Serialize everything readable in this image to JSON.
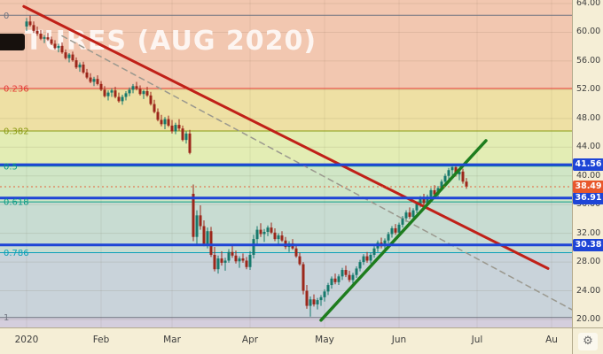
{
  "watermark": {
    "text": "TURES (AUG 2020)"
  },
  "controls": {
    "settings_icon": "⚙"
  },
  "chart_data": {
    "type": "candlestick",
    "title": "TURES (AUG 2020)",
    "colors": {
      "up": "#17796c",
      "down": "#9c271b",
      "background": "#f7f0d8"
    },
    "y_axis": {
      "min": 20,
      "max": 64,
      "ticks": [
        {
          "value": 64,
          "label": "64.00"
        },
        {
          "value": 60,
          "label": "60.00"
        },
        {
          "value": 56,
          "label": "56.00"
        },
        {
          "value": 52,
          "label": "52.00"
        },
        {
          "value": 48,
          "label": "48.00"
        },
        {
          "value": 44,
          "label": "44.00"
        },
        {
          "value": 40,
          "label": "40.00"
        },
        {
          "value": 36,
          "label": "36.00"
        },
        {
          "value": 32,
          "label": "32.00"
        },
        {
          "value": 28,
          "label": "28.00"
        },
        {
          "value": 24,
          "label": "24.00"
        },
        {
          "value": 20,
          "label": "20.00"
        }
      ]
    },
    "x_axis": {
      "labels": [
        {
          "label": "2020",
          "day": 0
        },
        {
          "label": "Feb",
          "day": 21
        },
        {
          "label": "Mar",
          "day": 41
        },
        {
          "label": "Apr",
          "day": 63
        },
        {
          "label": "May",
          "day": 84
        },
        {
          "label": "Jun",
          "day": 105
        },
        {
          "label": "Jul",
          "day": 127
        },
        {
          "label": "Au",
          "day": 148
        }
      ]
    },
    "fib_bands": [
      {
        "from": 66.0,
        "to": 52.17,
        "color": "#f2c7b0"
      },
      {
        "from": 52.17,
        "to": 46.25,
        "color": "#eee0a4"
      },
      {
        "from": 46.25,
        "to": 41.35,
        "color": "#e3edb4"
      },
      {
        "from": 41.35,
        "to": 36.38,
        "color": "#d0e6c6"
      },
      {
        "from": 36.38,
        "to": 29.31,
        "color": "#c8dcd2"
      },
      {
        "from": 29.31,
        "to": 20.28,
        "color": "#c9d3da"
      },
      {
        "from": 20.28,
        "to": 16.0,
        "color": "#d4cedd"
      }
    ],
    "fib_levels": [
      {
        "label": "0",
        "ratio": 0,
        "price": 62.36,
        "color": "#6f7480"
      },
      {
        "label": "0.236",
        "ratio": 0.236,
        "price": 52.17,
        "color": "#e53935"
      },
      {
        "label": "0.382",
        "ratio": 0.382,
        "price": 46.25,
        "color": "#8a9a12"
      },
      {
        "label": "0.5",
        "ratio": 0.5,
        "price": 41.35,
        "color": "#0a9a84"
      },
      {
        "label": "0.618",
        "ratio": 0.618,
        "price": 36.38,
        "color": "#0a9a84"
      },
      {
        "label": "0.786",
        "ratio": 0.786,
        "price": 29.31,
        "color": "#0aa0b8"
      },
      {
        "label": "1",
        "ratio": 1,
        "price": 20.28,
        "color": "#6f7480"
      }
    ],
    "price_lines": [
      {
        "label": "41.56",
        "price": 41.56,
        "color": "#1e45d6"
      },
      {
        "label": "36.91",
        "price": 36.91,
        "color": "#1e45d6"
      },
      {
        "label": "30.38",
        "price": 30.38,
        "color": "#1e45d6"
      }
    ],
    "current_price": {
      "label": "38.49",
      "price": 38.49,
      "color": "#e8572c"
    },
    "trend_lines": [
      {
        "name": "gray-dashed-channel",
        "color": "#9a988e",
        "width": 1.5,
        "dashed": true,
        "from": {
          "day": 10,
          "price": 59.5
        },
        "to": {
          "day": 154,
          "price": 21.3
        }
      },
      {
        "name": "red-downtrend",
        "color": "#c02018",
        "width": 3,
        "dashed": false,
        "from": {
          "day": -0.8,
          "price": 63.6
        },
        "to": {
          "day": 147,
          "price": 27.1
        }
      },
      {
        "name": "green-uptrend",
        "color": "#1e7d1e",
        "width": 3.5,
        "dashed": false,
        "from": {
          "day": 83,
          "price": 19.9
        },
        "to": {
          "day": 129.5,
          "price": 44.9
        }
      }
    ],
    "candles": [
      [
        60.8,
        62.0,
        60.2,
        61.5
      ],
      [
        61.5,
        62.3,
        60.8,
        61.0
      ],
      [
        61.0,
        61.5,
        59.9,
        60.2
      ],
      [
        60.2,
        60.8,
        59.5,
        59.8
      ],
      [
        59.8,
        60.3,
        58.9,
        59.1
      ],
      [
        59.1,
        59.6,
        58.5,
        59.3
      ],
      [
        59.3,
        59.9,
        58.8,
        59.0
      ],
      [
        59.0,
        59.4,
        58.2,
        58.4
      ],
      [
        58.4,
        58.9,
        57.6,
        57.8
      ],
      [
        57.8,
        58.4,
        57.2,
        58.1
      ],
      [
        58.1,
        58.6,
        57.0,
        57.2
      ],
      [
        57.2,
        57.6,
        56.2,
        56.4
      ],
      [
        56.4,
        57.1,
        55.8,
        56.9
      ],
      [
        56.9,
        57.3,
        55.9,
        56.1
      ],
      [
        56.1,
        56.5,
        54.9,
        55.1
      ],
      [
        55.1,
        55.8,
        54.5,
        55.5
      ],
      [
        55.5,
        55.9,
        54.2,
        54.4
      ],
      [
        54.4,
        54.9,
        53.5,
        53.7
      ],
      [
        53.7,
        54.3,
        52.9,
        53.1
      ],
      [
        53.1,
        53.8,
        52.5,
        53.5
      ],
      [
        53.5,
        54.0,
        52.6,
        52.8
      ],
      [
        52.8,
        53.2,
        51.8,
        52.0
      ],
      [
        52.0,
        52.5,
        50.9,
        51.1
      ],
      [
        51.1,
        51.9,
        50.5,
        51.6
      ],
      [
        51.6,
        52.2,
        51.0,
        51.9
      ],
      [
        51.9,
        52.4,
        50.8,
        51.0
      ],
      [
        51.0,
        51.6,
        50.2,
        50.4
      ],
      [
        50.4,
        51.3,
        49.9,
        51.0
      ],
      [
        51.0,
        51.8,
        50.5,
        51.5
      ],
      [
        51.5,
        52.3,
        51.1,
        52.0
      ],
      [
        52.0,
        52.8,
        51.5,
        52.5
      ],
      [
        52.5,
        53.1,
        51.9,
        52.1
      ],
      [
        52.1,
        52.6,
        51.2,
        51.4
      ],
      [
        51.4,
        52.0,
        50.7,
        51.8
      ],
      [
        51.8,
        52.4,
        51.0,
        51.2
      ],
      [
        51.2,
        51.7,
        49.8,
        50.0
      ],
      [
        50.0,
        50.6,
        48.7,
        48.9
      ],
      [
        48.9,
        49.4,
        47.6,
        47.8
      ],
      [
        47.8,
        48.5,
        46.9,
        47.2
      ],
      [
        47.2,
        48.2,
        46.5,
        47.9
      ],
      [
        47.9,
        48.4,
        46.8,
        47.0
      ],
      [
        47.0,
        47.8,
        45.9,
        46.2
      ],
      [
        46.2,
        47.4,
        45.8,
        47.1
      ],
      [
        47.1,
        47.9,
        46.3,
        46.6
      ],
      [
        46.6,
        47.0,
        44.8,
        45.0
      ],
      [
        45.0,
        46.2,
        44.5,
        45.9
      ],
      [
        45.9,
        46.4,
        43.0,
        43.2
      ],
      [
        37.5,
        38.8,
        30.9,
        31.5
      ],
      [
        31.5,
        35.2,
        30.5,
        34.5
      ],
      [
        34.5,
        35.9,
        32.5,
        33.0
      ],
      [
        33.0,
        33.8,
        30.2,
        30.5
      ],
      [
        30.5,
        32.8,
        29.9,
        32.3
      ],
      [
        32.3,
        32.9,
        28.7,
        29.0
      ],
      [
        29.0,
        30.1,
        26.7,
        27.0
      ],
      [
        27.0,
        28.9,
        26.4,
        28.5
      ],
      [
        28.5,
        29.5,
        27.5,
        27.9
      ],
      [
        27.9,
        28.6,
        26.8,
        28.2
      ],
      [
        28.2,
        29.8,
        27.9,
        29.4
      ],
      [
        29.4,
        30.5,
        28.6,
        28.9
      ],
      [
        28.9,
        29.6,
        27.8,
        28.1
      ],
      [
        28.1,
        28.8,
        27.2,
        28.5
      ],
      [
        28.5,
        29.2,
        27.9,
        28.2
      ],
      [
        28.2,
        28.7,
        27.0,
        27.3
      ],
      [
        27.3,
        29.5,
        26.9,
        29.0
      ],
      [
        29.0,
        31.8,
        28.5,
        31.2
      ],
      [
        31.2,
        33.0,
        30.5,
        32.5
      ],
      [
        32.5,
        33.4,
        31.5,
        31.9
      ],
      [
        31.9,
        32.6,
        30.8,
        32.2
      ],
      [
        32.2,
        33.1,
        31.6,
        32.8
      ],
      [
        32.8,
        33.5,
        31.9,
        32.1
      ],
      [
        32.1,
        32.7,
        30.9,
        31.2
      ],
      [
        31.2,
        32.0,
        30.5,
        31.7
      ],
      [
        31.7,
        32.3,
        30.8,
        31.0
      ],
      [
        31.0,
        31.5,
        29.8,
        30.1
      ],
      [
        30.1,
        30.9,
        29.4,
        30.6
      ],
      [
        30.6,
        31.2,
        29.7,
        29.9
      ],
      [
        29.9,
        30.4,
        28.6,
        28.8
      ],
      [
        28.8,
        29.3,
        27.5,
        27.7
      ],
      [
        27.7,
        28.0,
        23.5,
        24.0
      ],
      [
        24.0,
        24.8,
        21.5,
        21.9
      ],
      [
        21.9,
        23.2,
        20.4,
        22.8
      ],
      [
        22.8,
        23.5,
        21.8,
        22.1
      ],
      [
        22.1,
        23.0,
        21.4,
        22.7
      ],
      [
        22.7,
        23.4,
        21.9,
        23.1
      ],
      [
        23.1,
        24.2,
        22.5,
        23.9
      ],
      [
        23.9,
        25.1,
        23.4,
        24.8
      ],
      [
        24.8,
        26.0,
        24.3,
        25.7
      ],
      [
        25.7,
        26.4,
        24.9,
        25.2
      ],
      [
        25.2,
        26.3,
        24.8,
        26.0
      ],
      [
        26.0,
        27.2,
        25.5,
        26.9
      ],
      [
        26.9,
        27.5,
        25.9,
        26.2
      ],
      [
        26.2,
        26.8,
        25.2,
        25.5
      ],
      [
        25.5,
        26.5,
        25.0,
        26.2
      ],
      [
        26.2,
        27.4,
        25.8,
        27.1
      ],
      [
        27.1,
        28.3,
        26.7,
        28.0
      ],
      [
        28.0,
        29.1,
        27.6,
        28.8
      ],
      [
        28.8,
        29.4,
        27.9,
        28.2
      ],
      [
        28.2,
        29.3,
        27.8,
        29.0
      ],
      [
        29.0,
        30.2,
        28.6,
        29.9
      ],
      [
        29.9,
        31.0,
        29.4,
        30.7
      ],
      [
        30.7,
        31.4,
        29.9,
        30.2
      ],
      [
        30.2,
        31.3,
        29.8,
        31.0
      ],
      [
        31.0,
        32.2,
        30.6,
        31.9
      ],
      [
        31.9,
        33.0,
        31.4,
        32.7
      ],
      [
        32.7,
        33.3,
        31.8,
        32.1
      ],
      [
        32.1,
        33.5,
        31.7,
        33.2
      ],
      [
        33.2,
        34.4,
        32.8,
        34.1
      ],
      [
        34.1,
        35.2,
        33.6,
        34.9
      ],
      [
        34.9,
        35.6,
        34.0,
        34.3
      ],
      [
        34.3,
        35.5,
        33.9,
        35.2
      ],
      [
        35.2,
        36.4,
        34.8,
        36.1
      ],
      [
        36.1,
        37.2,
        35.6,
        36.9
      ],
      [
        36.9,
        37.5,
        35.9,
        36.2
      ],
      [
        36.2,
        37.4,
        35.8,
        37.1
      ],
      [
        37.1,
        38.3,
        36.7,
        38.0
      ],
      [
        38.0,
        38.7,
        37.1,
        37.4
      ],
      [
        37.4,
        38.6,
        37.0,
        38.3
      ],
      [
        38.3,
        39.5,
        37.9,
        39.2
      ],
      [
        39.2,
        40.3,
        38.7,
        40.0
      ],
      [
        40.0,
        41.1,
        39.5,
        40.8
      ],
      [
        40.8,
        41.6,
        40.1,
        41.2
      ],
      [
        41.2,
        41.5,
        39.9,
        40.2
      ],
      [
        40.2,
        40.9,
        39.4,
        40.6
      ],
      [
        40.6,
        41.0,
        38.9,
        39.2
      ],
      [
        39.2,
        39.7,
        38.2,
        38.49
      ]
    ]
  }
}
